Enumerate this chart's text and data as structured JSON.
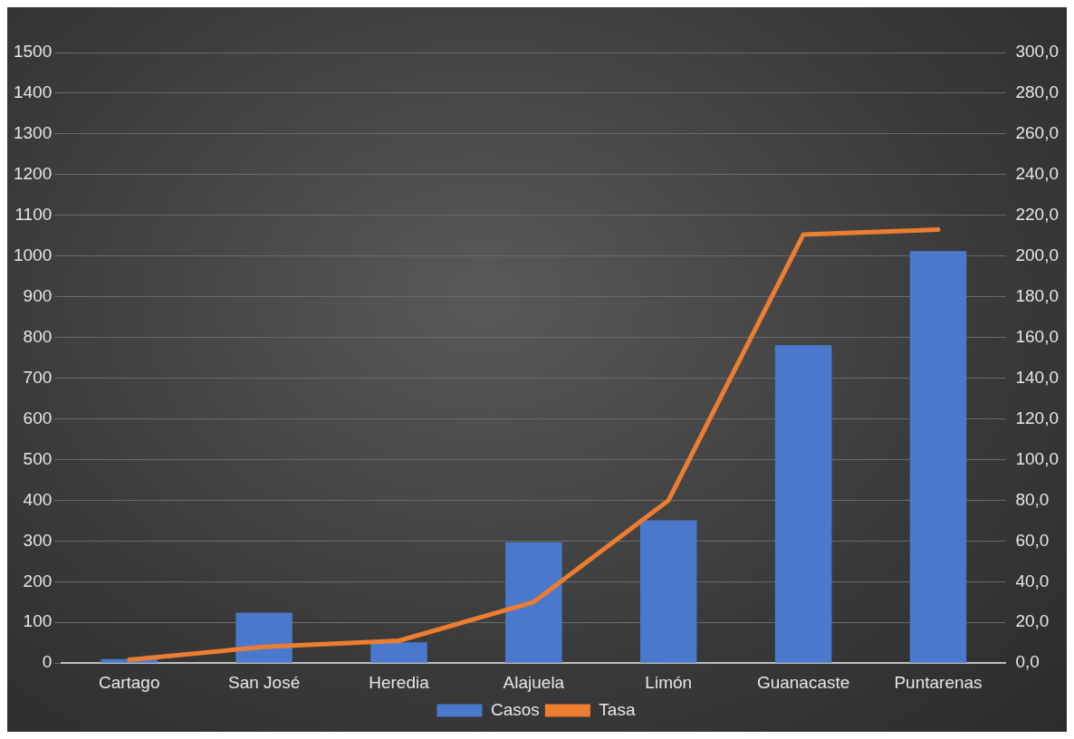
{
  "chart_data": {
    "type": "bar",
    "categories": [
      "Cartago",
      "San José",
      "Heredia",
      "Alajuela",
      "Limón",
      "Guanacaste",
      "Puntarenas"
    ],
    "series": [
      {
        "name": "Casos",
        "color": "#4a78cc",
        "values": [
          10,
          124,
          51,
          297,
          351,
          781,
          1012
        ]
      },
      {
        "name": "Tasa",
        "type": "line",
        "axis": "y2",
        "color": "#ed7d31",
        "values": [
          1.6,
          8,
          11,
          30,
          80,
          210.6,
          213
        ]
      }
    ],
    "ylim": [
      0,
      1500
    ],
    "yticks": [
      0,
      100,
      200,
      300,
      400,
      500,
      600,
      700,
      800,
      900,
      1000,
      1100,
      1200,
      1300,
      1400,
      1500
    ],
    "y2lim": [
      0,
      300
    ],
    "y2ticks": [
      {
        "value": 0,
        "label": "0,0"
      },
      {
        "value": 20,
        "label": "20,0"
      },
      {
        "value": 40,
        "label": "40,0"
      },
      {
        "value": 60,
        "label": "60,0"
      },
      {
        "value": 80,
        "label": "80,0"
      },
      {
        "value": 100,
        "label": "100,0"
      },
      {
        "value": 120,
        "label": "120,0"
      },
      {
        "value": 140,
        "label": "140,0"
      },
      {
        "value": 160,
        "label": "160,0"
      },
      {
        "value": 180,
        "label": "180,0"
      },
      {
        "value": 200,
        "label": "200,0"
      },
      {
        "value": 220,
        "label": "220,0"
      },
      {
        "value": 240,
        "label": "240,0"
      },
      {
        "value": 260,
        "label": "260,0"
      },
      {
        "value": 280,
        "label": "280,0"
      },
      {
        "value": 300,
        "label": "300,0"
      }
    ],
    "grid": "y",
    "legend": "bottom",
    "marker": "none",
    "line_style": "solid"
  }
}
